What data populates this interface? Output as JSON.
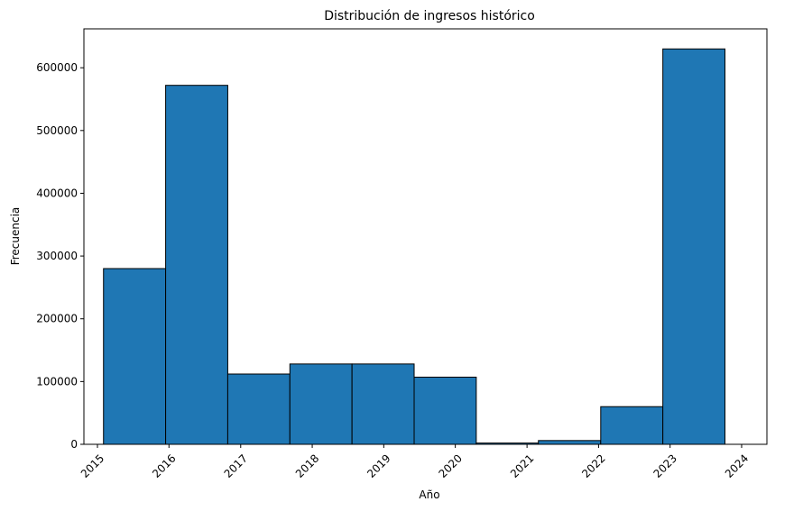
{
  "chart_data": {
    "type": "bar",
    "title": "Distribución de ingresos histórico",
    "xlabel": "Año",
    "ylabel": "Frecuencia",
    "bar_color": "#1f77b4",
    "edge_color": "#000000",
    "xlim": [
      "2014-10-24",
      "2024-05-09"
    ],
    "ylim": [
      0,
      662000
    ],
    "x_ticks": [
      "2015",
      "2016",
      "2017",
      "2018",
      "2019",
      "2020",
      "2021",
      "2022",
      "2023",
      "2024"
    ],
    "y_ticks": [
      "0",
      "100000",
      "200000",
      "300000",
      "400000",
      "500000",
      "600000"
    ],
    "bins": [
      {
        "start": "2015-02-01",
        "end": "2015-12-15",
        "value": 280000
      },
      {
        "start": "2015-12-15",
        "end": "2016-10-27",
        "value": 572000
      },
      {
        "start": "2016-10-27",
        "end": "2017-09-09",
        "value": 112000
      },
      {
        "start": "2017-09-09",
        "end": "2018-07-23",
        "value": 128000
      },
      {
        "start": "2018-07-23",
        "end": "2019-06-05",
        "value": 128000
      },
      {
        "start": "2019-06-05",
        "end": "2020-04-17",
        "value": 107000
      },
      {
        "start": "2020-04-17",
        "end": "2021-02-28",
        "value": 2000
      },
      {
        "start": "2021-02-28",
        "end": "2022-01-12",
        "value": 6000
      },
      {
        "start": "2022-01-12",
        "end": "2022-11-25",
        "value": 60000
      },
      {
        "start": "2022-11-25",
        "end": "2023-10-08",
        "value": 630000
      }
    ]
  }
}
